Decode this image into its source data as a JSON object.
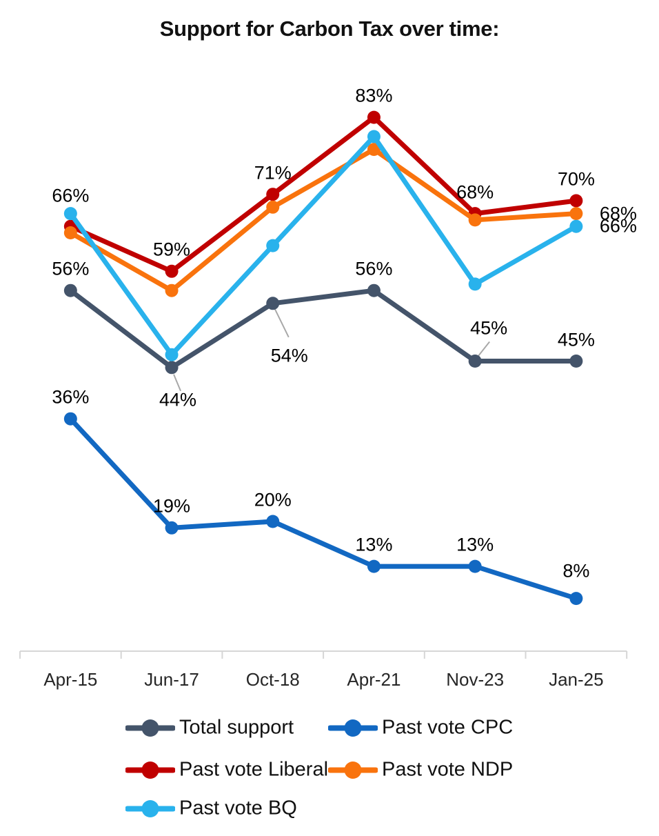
{
  "title": "Support for Carbon Tax over time:",
  "chart_data": {
    "type": "line",
    "title": "Support for Carbon Tax over time:",
    "categories": [
      "Apr-15",
      "Jun-17",
      "Oct-18",
      "Apr-21",
      "Nov-23",
      "Jan-25"
    ],
    "series": [
      {
        "name": "Total support",
        "color": "#44546A",
        "values": [
          56,
          44,
          54,
          56,
          45,
          45
        ],
        "label_pos": [
          "above",
          "below-leader",
          "below-right-leader",
          "above",
          "above-right-leader",
          "above"
        ]
      },
      {
        "name": "Past vote CPC",
        "color": "#1268C2",
        "values": [
          36,
          19,
          20,
          13,
          13,
          8
        ],
        "label_pos": [
          "above",
          "above",
          "above",
          "above",
          "above",
          "above-high"
        ]
      },
      {
        "name": "Past vote Liberal",
        "color": "#C00000",
        "values": [
          66,
          59,
          71,
          83,
          68,
          70
        ],
        "label_pos": [
          "above-far",
          "above",
          "above",
          "above",
          "above",
          "above"
        ]
      },
      {
        "name": "Past vote NDP",
        "color": "#F9730D",
        "values": [
          65,
          56,
          69,
          78,
          67,
          68
        ],
        "label_pos": [
          null,
          null,
          null,
          null,
          null,
          "right"
        ]
      },
      {
        "name": "Past vote BQ",
        "color": "#29B2EC",
        "values": [
          68,
          46,
          63,
          80,
          57,
          66
        ],
        "label_pos": [
          null,
          null,
          null,
          null,
          null,
          "right"
        ]
      }
    ],
    "label_format": "{value}%",
    "ylim": [
      0,
      100
    ],
    "grid": false,
    "y_axis_shown": false,
    "legend_position": "bottom",
    "axis_color": "#D6D6D6",
    "leader_line_color": "#A8A8A8",
    "label_color": "#000000"
  }
}
